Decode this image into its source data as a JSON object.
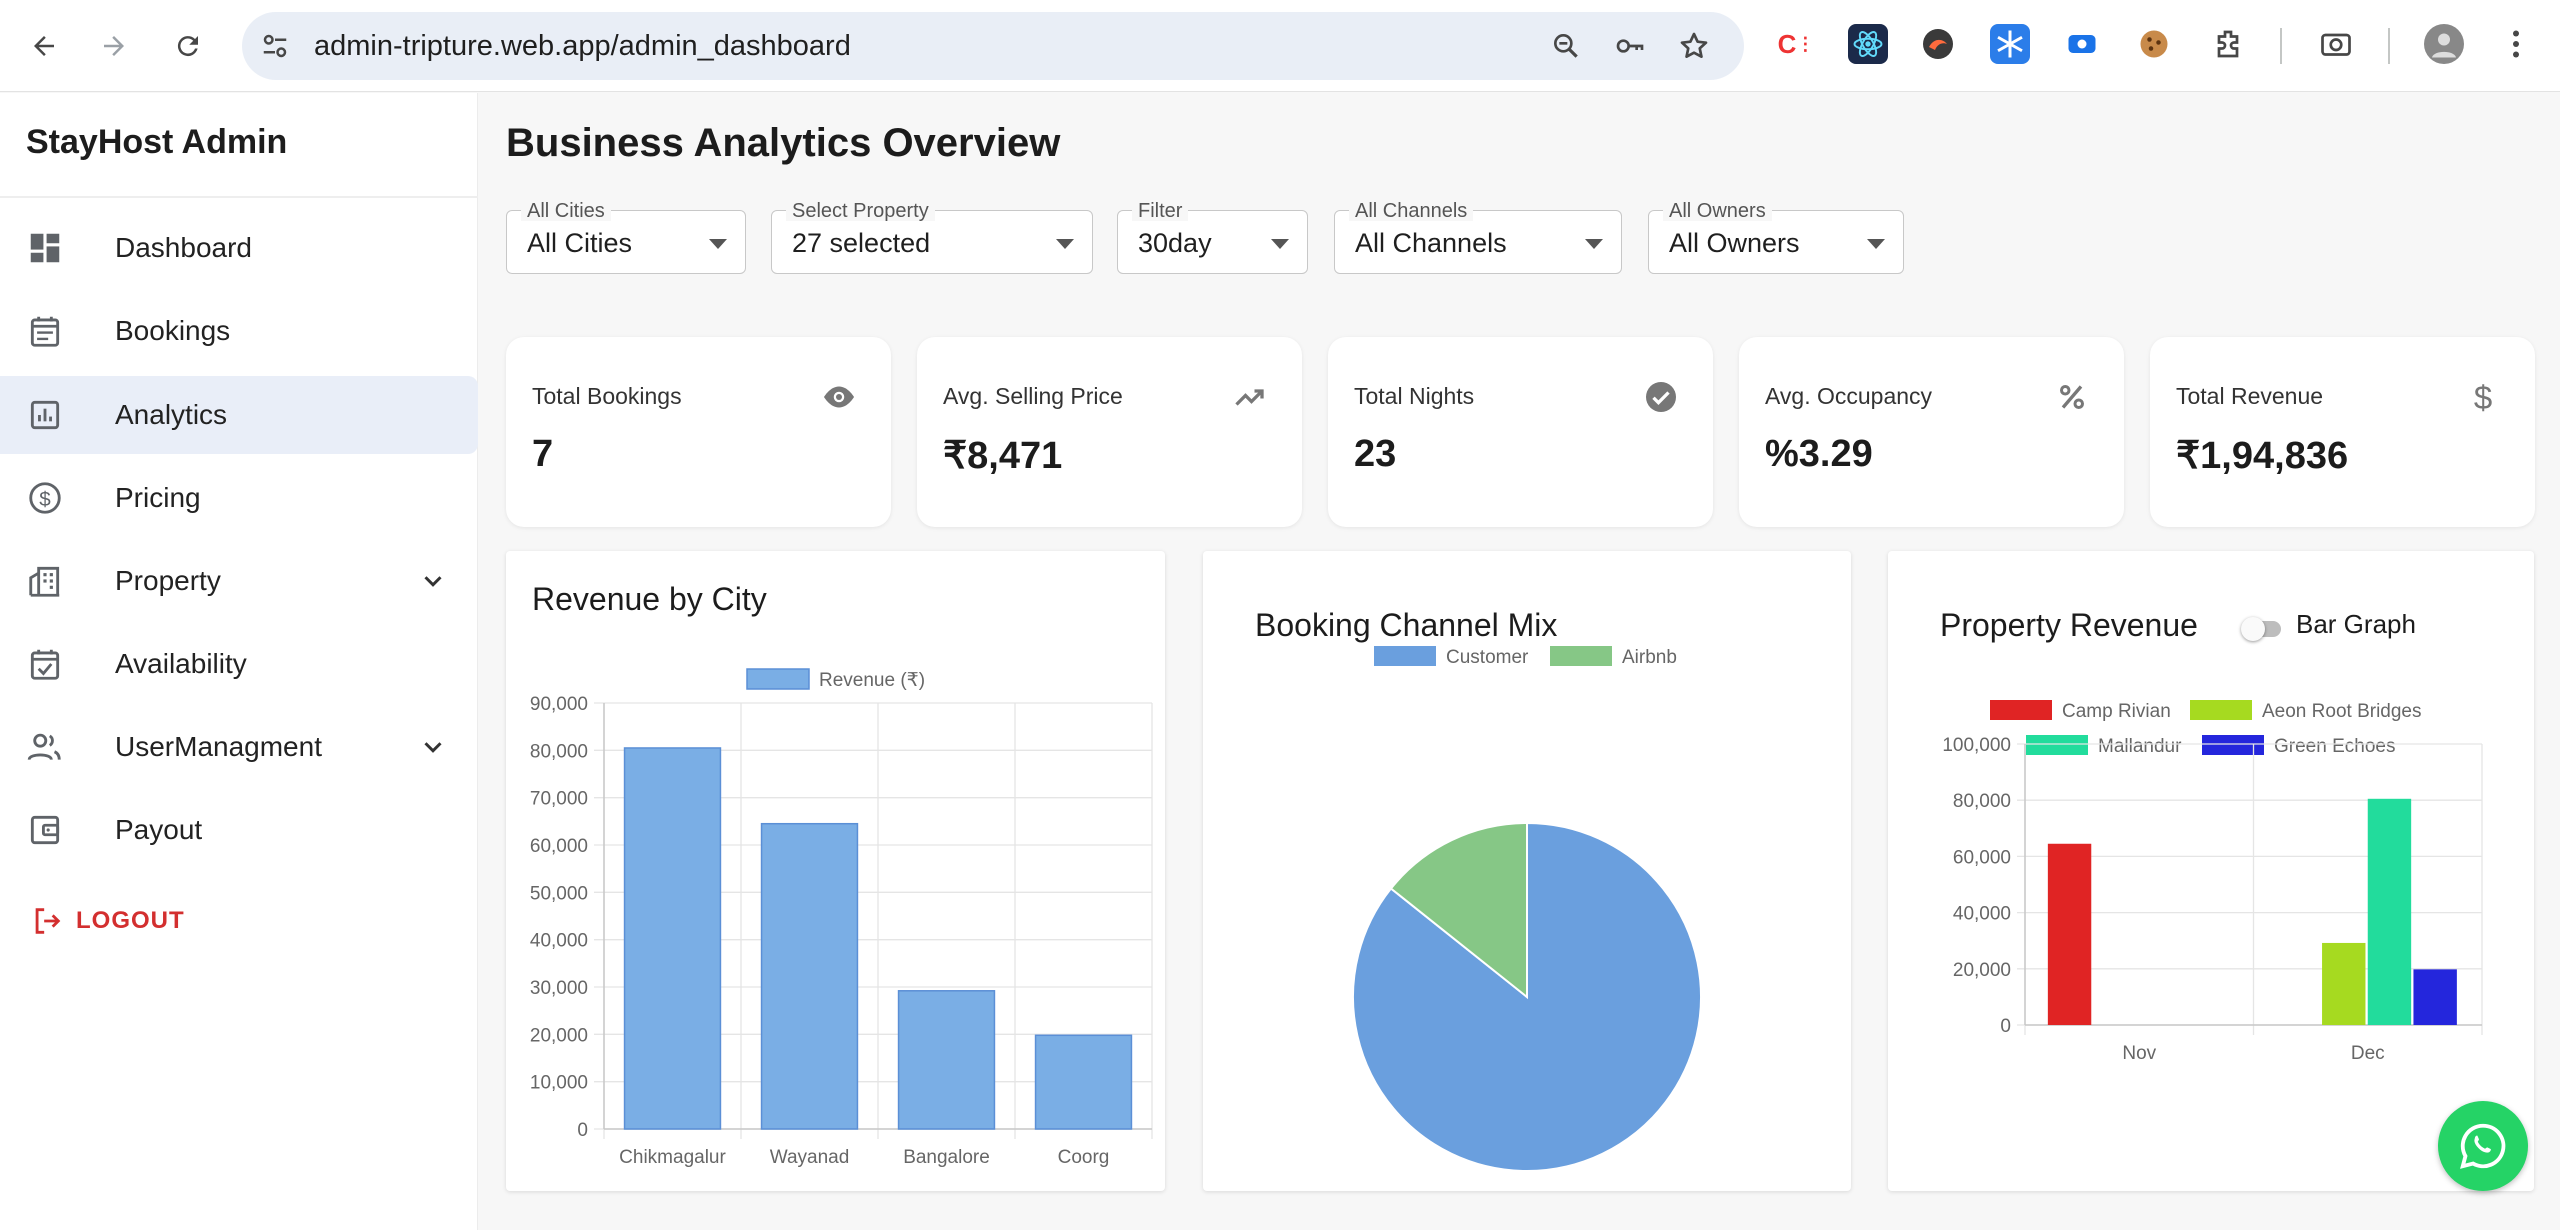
{
  "browser": {
    "url": "admin-tripture.web.app/admin_dashboard",
    "icons": [
      "back-icon",
      "forward-icon",
      "reload-icon",
      "site-info-icon",
      "zoom-icon",
      "password-key-icon",
      "bookmark-star-icon",
      "extensions-icon",
      "screenshot-icon",
      "profile-avatar",
      "menu-kebab-icon"
    ]
  },
  "sidebar": {
    "brand": "StayHost Admin",
    "items": [
      {
        "label": "Dashboard",
        "icon": "dashboard-icon"
      },
      {
        "label": "Bookings",
        "icon": "calendar-list-icon"
      },
      {
        "label": "Analytics",
        "icon": "analytics-icon",
        "active": true
      },
      {
        "label": "Pricing",
        "icon": "dollar-circle-icon"
      },
      {
        "label": "Property",
        "icon": "building-icon",
        "expandable": true
      },
      {
        "label": "Availability",
        "icon": "calendar-check-icon"
      },
      {
        "label": "UserManagment",
        "icon": "users-icon",
        "expandable": true
      },
      {
        "label": "Payout",
        "icon": "wallet-icon"
      }
    ],
    "logout": "LOGOUT"
  },
  "main": {
    "title": "Business Analytics Overview",
    "filters": [
      {
        "label": "All Cities",
        "value": "All Cities"
      },
      {
        "label": "Select Property",
        "value": "27 selected"
      },
      {
        "label": "Filter",
        "value": "30day"
      },
      {
        "label": "All Channels",
        "value": "All Channels"
      },
      {
        "label": "All Owners",
        "value": "All Owners"
      }
    ],
    "stats": [
      {
        "title": "Total Bookings",
        "value": "7",
        "icon": "eye-icon"
      },
      {
        "title": "Avg. Selling Price",
        "value": "₹8,471",
        "icon": "trending-up-icon"
      },
      {
        "title": "Total Nights",
        "value": "23",
        "icon": "check-circle-icon"
      },
      {
        "title": "Avg. Occupancy",
        "value": "%3.29",
        "icon": "percent-icon"
      },
      {
        "title": "Total Revenue",
        "value": "₹1,94,836",
        "icon": "dollar-icon"
      }
    ],
    "cards": {
      "city": {
        "title": "Revenue by City"
      },
      "channel": {
        "title": "Booking Channel Mix"
      },
      "property": {
        "title": "Property Revenue",
        "toggle_label": "Bar Graph"
      }
    }
  },
  "colors": {
    "accent_bar": "#7aaee5",
    "accent_bar_border": "#5b8fd6",
    "pie_customer": "#6a9fde",
    "pie_airbnb": "#86c786",
    "prop_camp": "#e02424",
    "prop_aeon": "#a6da20",
    "prop_mallandur": "#22dc9c",
    "prop_green": "#2426dc",
    "logout": "#d32f2f",
    "whatsapp": "#25d366"
  },
  "chart_data": [
    {
      "type": "bar",
      "title": "Revenue by City",
      "categories": [
        "Chikmagalur",
        "Wayanad",
        "Bangalore",
        "Coorg"
      ],
      "series": [
        {
          "name": "Revenue (₹)",
          "values": [
            80500,
            64500,
            29200,
            19800
          ]
        }
      ],
      "ylim": [
        0,
        90000
      ],
      "yticks": [
        "90,000",
        "80,000",
        "70,000",
        "60,000",
        "50,000",
        "40,000",
        "30,000",
        "20,000",
        "10,000",
        "0"
      ],
      "grid": true,
      "legend": "top"
    },
    {
      "type": "pie",
      "title": "Booking Channel Mix",
      "categories": [
        "Customer",
        "Airbnb"
      ],
      "values": [
        6,
        1
      ],
      "legend": "top"
    },
    {
      "type": "bar",
      "title": "Property Revenue",
      "categories": [
        "Nov",
        "Dec"
      ],
      "series": [
        {
          "name": "Camp Rivian",
          "values": [
            64500,
            0
          ]
        },
        {
          "name": "Aeon Root Bridges",
          "values": [
            0,
            29200
          ]
        },
        {
          "name": "Mallandur",
          "values": [
            0,
            80500
          ]
        },
        {
          "name": "Green Echoes",
          "values": [
            0,
            19800
          ]
        }
      ],
      "ylim": [
        0,
        100000
      ],
      "yticks": [
        "100,000",
        "80,000",
        "60,000",
        "40,000",
        "20,000",
        "0"
      ],
      "grid": true,
      "legend": "top"
    }
  ],
  "whatsapp": {
    "icon": "whatsapp-icon"
  }
}
